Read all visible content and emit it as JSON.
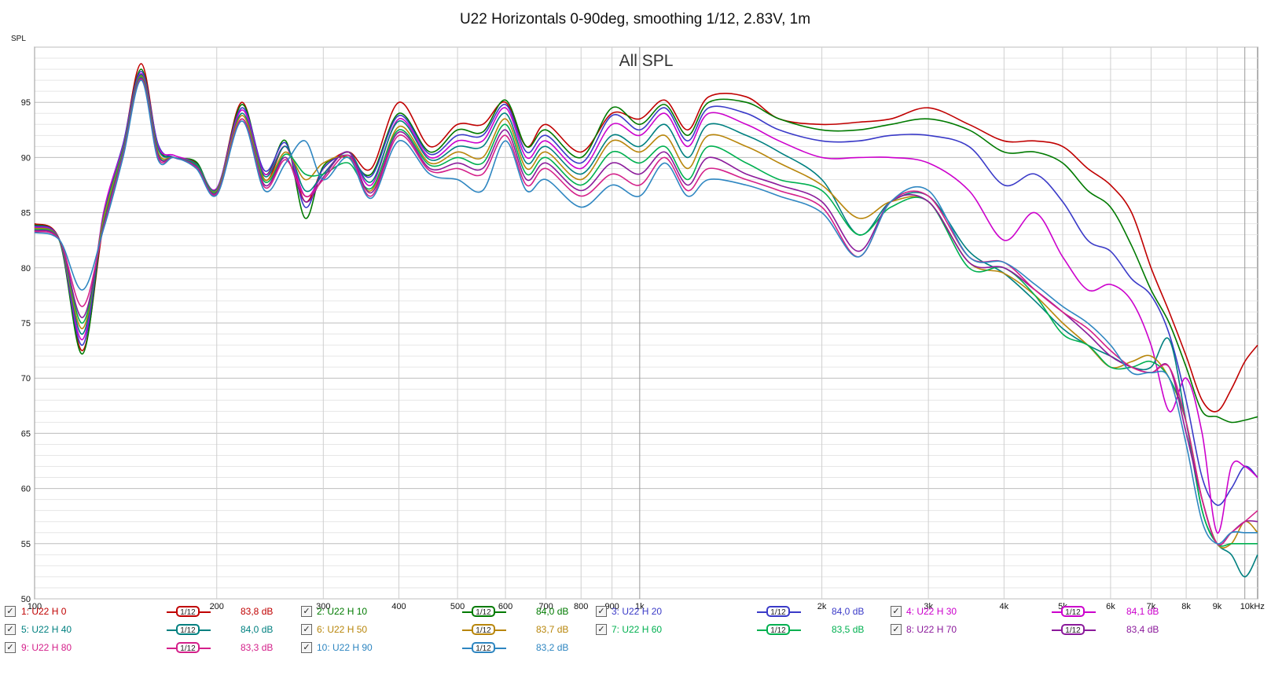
{
  "window_title": "U22 Horizontals 0-90deg, smoothing 1/12, 2.83V, 1m",
  "chart_data": {
    "type": "line",
    "title": "All SPL",
    "ylabel": "SPL",
    "xlabel": "",
    "xscale": "log",
    "xlim": [
      100,
      10500
    ],
    "ylim": [
      50,
      100
    ],
    "grid": true,
    "yticks": [
      50,
      55,
      60,
      65,
      70,
      75,
      80,
      85,
      90,
      95
    ],
    "xticks": [
      {
        "v": 100,
        "label": "100"
      },
      {
        "v": 200,
        "label": "200"
      },
      {
        "v": 300,
        "label": "300"
      },
      {
        "v": 400,
        "label": "400"
      },
      {
        "v": 500,
        "label": "500"
      },
      {
        "v": 600,
        "label": "600"
      },
      {
        "v": 700,
        "label": "700"
      },
      {
        "v": 800,
        "label": "800"
      },
      {
        "v": 900,
        "label": "900"
      },
      {
        "v": 1000,
        "label": "1k"
      },
      {
        "v": 2000,
        "label": "2k"
      },
      {
        "v": 3000,
        "label": "3k"
      },
      {
        "v": 4000,
        "label": "4k"
      },
      {
        "v": 5000,
        "label": "5k"
      },
      {
        "v": 6000,
        "label": "6k"
      },
      {
        "v": 7000,
        "label": "7k"
      },
      {
        "v": 8000,
        "label": "8k"
      },
      {
        "v": 9000,
        "label": "9k"
      },
      {
        "v": 10000,
        "label": "10kHz"
      }
    ],
    "x": [
      100,
      110,
      120,
      130,
      140,
      150,
      160,
      170,
      185,
      200,
      220,
      240,
      260,
      280,
      300,
      330,
      360,
      400,
      450,
      500,
      550,
      600,
      650,
      700,
      800,
      900,
      1000,
      1100,
      1200,
      1300,
      1500,
      1700,
      2000,
      2300,
      2600,
      3000,
      3500,
      4000,
      4500,
      5000,
      5500,
      6000,
      6500,
      7000,
      7500,
      8000,
      8500,
      9000,
      9500,
      10000,
      10500
    ],
    "series": [
      {
        "name": "1: U22 H 0",
        "color": "#c00000",
        "level": "83,8 dB",
        "values": [
          84,
          82.5,
          72.5,
          84,
          91,
          98.5,
          91,
          90,
          89.5,
          87,
          95,
          88,
          91,
          86,
          89,
          90.5,
          89,
          95,
          91,
          93,
          93,
          95,
          91,
          93,
          90.5,
          94,
          93.5,
          95.2,
          92.5,
          95.5,
          95.5,
          93.5,
          93,
          93.2,
          93.5,
          94.5,
          93,
          91.5,
          91.5,
          91,
          89,
          87.5,
          85,
          80,
          76,
          72,
          68,
          67,
          69,
          71.5,
          73
        ]
      },
      {
        "name": "2: U22 H 10",
        "color": "#007a00",
        "level": "84,0 dB",
        "values": [
          83.9,
          82.4,
          72.2,
          84.5,
          91,
          98,
          91,
          90,
          89.6,
          87,
          94.8,
          88.5,
          91.5,
          84.5,
          89.2,
          90,
          88.5,
          94,
          90.5,
          92.5,
          92.3,
          95.2,
          91,
          92.5,
          90,
          94.5,
          93,
          94.8,
          92,
          95,
          95,
          93.5,
          92.5,
          92.5,
          93,
          93.5,
          92.5,
          90.5,
          90.5,
          89.5,
          87,
          85.5,
          82,
          78,
          75,
          71,
          67,
          66.5,
          66,
          66.2,
          66.5
        ]
      },
      {
        "name": "3: U22 H 20",
        "color": "#3a3ac8",
        "level": "84,0 dB",
        "values": [
          83.8,
          82.5,
          73,
          84.8,
          91.2,
          97.8,
          91.2,
          90,
          89.4,
          87.2,
          94.5,
          88.8,
          91.3,
          85.5,
          89,
          90.2,
          88.3,
          93.8,
          90.3,
          92,
          92,
          94.8,
          90.5,
          92,
          89.5,
          93.8,
          92.5,
          94.5,
          91.5,
          94.5,
          94,
          92.5,
          91.5,
          91.5,
          92,
          92,
          91,
          87.5,
          88.5,
          86,
          82.5,
          81.5,
          79,
          77.5,
          74,
          68,
          61,
          58.5,
          60,
          62,
          61
        ]
      },
      {
        "name": "4: U22 H 30",
        "color": "#cc00cc",
        "level": "84,1 dB",
        "values": [
          83.7,
          82.5,
          73.5,
          85,
          91,
          97.6,
          91,
          90.2,
          89.4,
          87.2,
          94.3,
          88.5,
          91,
          86.5,
          88.5,
          90.5,
          87.5,
          93.5,
          90,
          91.5,
          91.5,
          94.5,
          90,
          91.5,
          89,
          93,
          92,
          94,
          91,
          94,
          93,
          91.5,
          90,
          90,
          90,
          89.5,
          87,
          82.5,
          85,
          81,
          78,
          78.5,
          77,
          73,
          67,
          70,
          65,
          56,
          62,
          62,
          61
        ]
      },
      {
        "name": "5: U22 H 40",
        "color": "#008080",
        "level": "84,0 dB",
        "values": [
          83.6,
          82.5,
          74,
          84.6,
          90.8,
          97.5,
          90.8,
          90,
          89.4,
          87.1,
          94,
          88.3,
          91,
          87,
          88.5,
          90.5,
          87.8,
          93.3,
          89.8,
          91,
          91,
          94,
          89.5,
          91,
          88.5,
          92,
          91,
          93,
          90,
          93,
          92,
          90.5,
          88,
          83,
          86,
          86.5,
          81.5,
          79.5,
          77,
          74.5,
          73,
          72,
          71,
          71,
          73.5,
          66,
          58,
          55,
          54,
          52,
          54
        ]
      },
      {
        "name": "6: U22 H 50",
        "color": "#b8860b",
        "level": "83,7 dB",
        "values": [
          83.6,
          82.5,
          74.5,
          84.4,
          90.6,
          97.4,
          90.5,
          90,
          89.3,
          87,
          93.8,
          88,
          90.5,
          88,
          89.5,
          90,
          87,
          92.8,
          89.5,
          90.5,
          90,
          93.5,
          89,
          90.5,
          88,
          91.5,
          90.5,
          92,
          89,
          92,
          91,
          89.5,
          87.5,
          84.5,
          86,
          86,
          80.5,
          79.5,
          77.5,
          75,
          73,
          71,
          71.5,
          72,
          70,
          66,
          59,
          55,
          55,
          57,
          56
        ]
      },
      {
        "name": "7: U22 H 60",
        "color": "#00b050",
        "level": "83,5 dB",
        "values": [
          83.5,
          82.5,
          75,
          84,
          90.5,
          97.3,
          90.3,
          90,
          89.3,
          86.9,
          93.5,
          87.8,
          90.3,
          88.5,
          88.5,
          89.5,
          87.2,
          92.5,
          89.3,
          90,
          89.5,
          93,
          88.5,
          90,
          87.5,
          90.5,
          89.5,
          91,
          88,
          91,
          89.5,
          88,
          87,
          83,
          85.5,
          86,
          80,
          80,
          77.5,
          74,
          73,
          71,
          71,
          71.5,
          70,
          66,
          58,
          55,
          55,
          55,
          55
        ]
      },
      {
        "name": "8: U22 H 70",
        "color": "#8b1a9b",
        "level": "83,4 dB",
        "values": [
          83.4,
          82.5,
          75.5,
          83.8,
          90.3,
          97.2,
          90.2,
          90,
          89.2,
          86.8,
          93.5,
          87.5,
          90,
          86,
          88.2,
          90.5,
          86.8,
          92.3,
          89,
          89.5,
          89,
          92.5,
          88,
          89.5,
          87,
          89.5,
          88.5,
          90.5,
          87.5,
          90,
          88.5,
          87.5,
          86,
          81.5,
          86,
          86,
          80.5,
          80,
          78,
          76,
          74,
          72,
          71,
          70.5,
          71,
          65,
          59,
          55,
          56,
          57,
          57
        ]
      },
      {
        "name": "9: U22 H 80",
        "color": "#d4208a",
        "level": "83,3 dB",
        "values": [
          83.3,
          82.5,
          76.5,
          83.6,
          90.2,
          97.1,
          90,
          90,
          89.1,
          86.7,
          93.5,
          87.3,
          89.8,
          86.5,
          88,
          90.2,
          86.5,
          92,
          88.8,
          89,
          88.5,
          92,
          87.5,
          89,
          86.5,
          88.5,
          87.5,
          90,
          87,
          89,
          88,
          87,
          85.5,
          81,
          86,
          86.5,
          81,
          80.5,
          78,
          76,
          74.5,
          72.5,
          71,
          70.5,
          71,
          66,
          59,
          55,
          56,
          57,
          58
        ]
      },
      {
        "name": "10: U22 H 90",
        "color": "#2e86c1",
        "level": "83,2 dB",
        "values": [
          83.2,
          82.5,
          78,
          83.5,
          90,
          97,
          89.8,
          90,
          89,
          86.6,
          93.3,
          87,
          89.5,
          91.5,
          88,
          90,
          86.3,
          91.5,
          88.5,
          88,
          87,
          91.5,
          87,
          88,
          85.5,
          87.5,
          86.5,
          89.5,
          86.5,
          88,
          87.5,
          86.5,
          85,
          81,
          86,
          87,
          81,
          80.5,
          78.5,
          76.5,
          75,
          73,
          70.5,
          70.5,
          70,
          64,
          57,
          55,
          56,
          56,
          56
        ]
      }
    ]
  },
  "legend": {
    "smoothing_label": "1/12"
  }
}
